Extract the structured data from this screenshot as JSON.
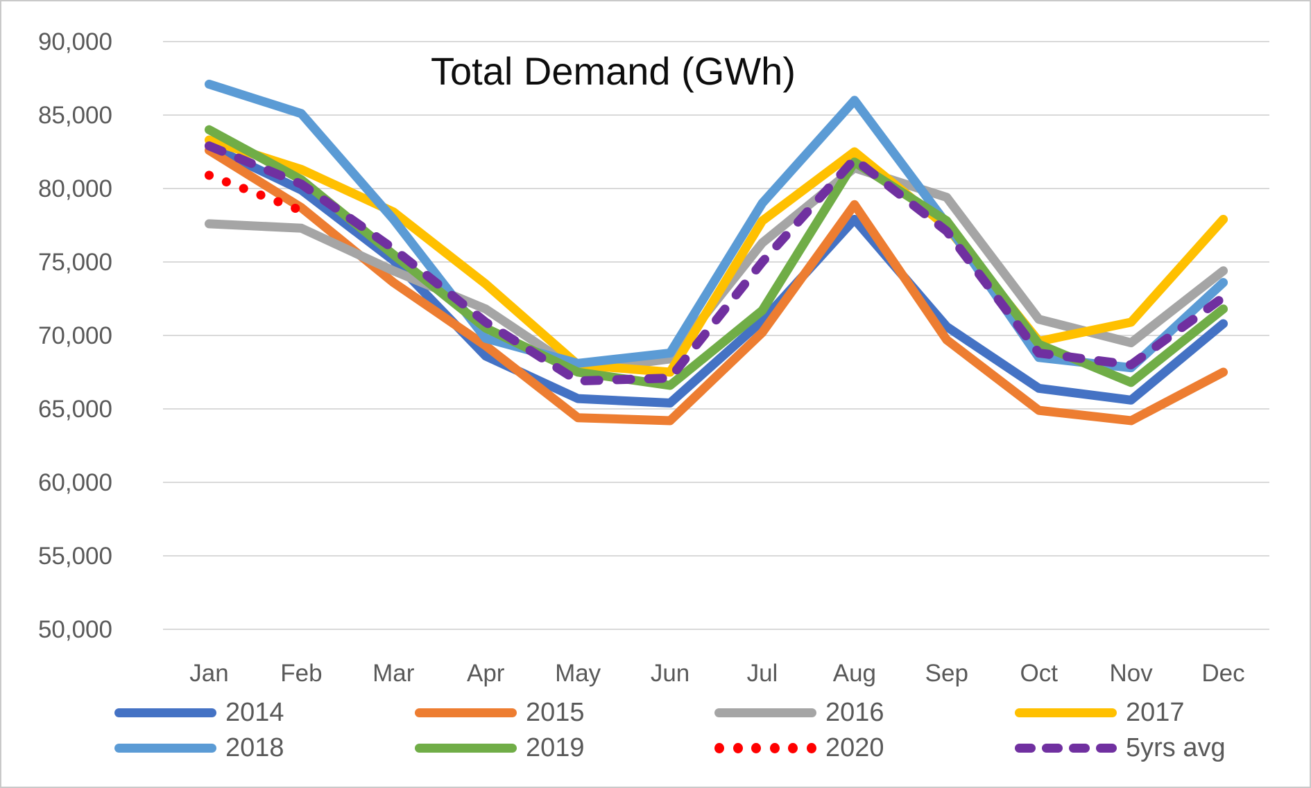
{
  "chart_data": {
    "type": "line",
    "title": "Total Demand (GWh)",
    "xlabel": "",
    "ylabel": "",
    "ylim": [
      50000,
      90000
    ],
    "ytick_step": 5000,
    "grid": "horizontal",
    "legend_position": "bottom",
    "yticks": [
      {
        "value": 90000,
        "label": "90,000"
      },
      {
        "value": 85000,
        "label": "85,000"
      },
      {
        "value": 80000,
        "label": "80,000"
      },
      {
        "value": 75000,
        "label": "75,000"
      },
      {
        "value": 70000,
        "label": "70,000"
      },
      {
        "value": 65000,
        "label": "65,000"
      },
      {
        "value": 60000,
        "label": "60,000"
      },
      {
        "value": 55000,
        "label": "55,000"
      },
      {
        "value": 50000,
        "label": "50,000"
      }
    ],
    "categories": [
      "Jan",
      "Feb",
      "Mar",
      "Apr",
      "May",
      "Jun",
      "Jul",
      "Aug",
      "Sep",
      "Oct",
      "Nov",
      "Dec"
    ],
    "series": [
      {
        "name": "2014",
        "color": "#4472C4",
        "style": "solid",
        "values": [
          82900,
          79900,
          75100,
          68600,
          65700,
          65400,
          71000,
          77900,
          70600,
          66400,
          65600,
          70800
        ]
      },
      {
        "name": "2015",
        "color": "#ED7D31",
        "style": "solid",
        "values": [
          82600,
          78700,
          73600,
          69300,
          64400,
          64200,
          70200,
          78900,
          69700,
          64900,
          64200,
          67500
        ]
      },
      {
        "name": "2016",
        "color": "#A5A5A5",
        "style": "solid",
        "values": [
          77600,
          77300,
          74400,
          71800,
          67600,
          68400,
          76300,
          81400,
          79400,
          71100,
          69500,
          74400
        ]
      },
      {
        "name": "2017",
        "color": "#FFC000",
        "style": "solid",
        "values": [
          83300,
          81300,
          78400,
          73500,
          68000,
          67500,
          77800,
          82500,
          77400,
          69600,
          70900,
          77900
        ]
      },
      {
        "name": "2018",
        "color": "#5B9BD5",
        "style": "solid",
        "values": [
          87100,
          85100,
          77900,
          69800,
          68100,
          68800,
          79000,
          86000,
          77600,
          68500,
          67800,
          73600
        ]
      },
      {
        "name": "2019",
        "color": "#70AD47",
        "style": "solid",
        "values": [
          84000,
          80600,
          75500,
          70500,
          67500,
          66600,
          71700,
          81800,
          77800,
          69400,
          66800,
          71800
        ]
      },
      {
        "name": "2020",
        "color": "#FF0000",
        "style": "dotted",
        "values": [
          80900,
          78500,
          null,
          null,
          null,
          null,
          null,
          null,
          null,
          null,
          null,
          null
        ]
      },
      {
        "name": "5yrs avg",
        "color": "#7030A0",
        "style": "dashed",
        "values": [
          82900,
          80300,
          75900,
          70900,
          66900,
          67100,
          75000,
          82000,
          77100,
          68800,
          68000,
          72600
        ]
      }
    ]
  }
}
